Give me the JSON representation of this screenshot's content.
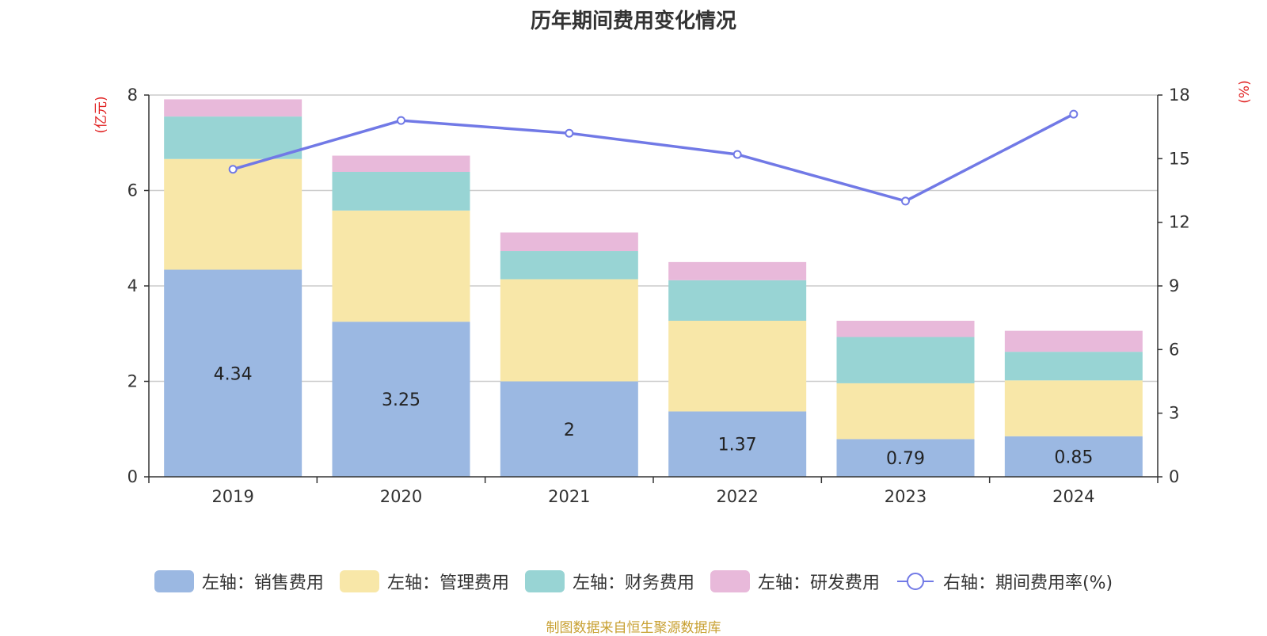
{
  "title": "历年期间费用变化情况",
  "source": "制图数据来自恒生聚源数据库",
  "chart_data": {
    "type": "bar",
    "stacked": true,
    "title": "历年期间费用变化情况",
    "categories": [
      "2019",
      "2020",
      "2021",
      "2022",
      "2023",
      "2024"
    ],
    "y_left": {
      "unit": "(亿元)",
      "ylim": [
        0,
        8
      ],
      "ticks": [
        "0",
        "2",
        "4",
        "6",
        "8"
      ]
    },
    "y_right": {
      "unit": "(%)",
      "ylim": [
        0,
        18
      ],
      "ticks": [
        "0",
        "3",
        "6",
        "9",
        "12",
        "15",
        "18"
      ]
    },
    "grid": true,
    "legend_position": "bottom",
    "series": [
      {
        "name": "左轴：销售费用",
        "axis": "left",
        "type": "bar",
        "color": "#9bb8e2",
        "values": [
          4.34,
          3.25,
          2,
          1.37,
          0.79,
          0.85
        ],
        "labels": [
          "4.34",
          "3.25",
          "2",
          "1.37",
          "0.79",
          "0.85"
        ]
      },
      {
        "name": "左轴：管理费用",
        "axis": "left",
        "type": "bar",
        "color": "#f8e7a8",
        "values": [
          2.32,
          2.33,
          2.14,
          1.9,
          1.17,
          1.17
        ]
      },
      {
        "name": "左轴：财务费用",
        "axis": "left",
        "type": "bar",
        "color": "#98d4d4",
        "values": [
          0.89,
          0.81,
          0.59,
          0.85,
          0.97,
          0.6
        ]
      },
      {
        "name": "左轴：研发费用",
        "axis": "left",
        "type": "bar",
        "color": "#e8b9da",
        "values": [
          0.36,
          0.34,
          0.39,
          0.38,
          0.34,
          0.44
        ]
      },
      {
        "name": "右轴：期间费用率(%)",
        "axis": "right",
        "type": "line",
        "color": "#7179e6",
        "values": [
          14.5,
          16.8,
          16.2,
          15.2,
          13.0,
          17.1
        ]
      }
    ]
  }
}
